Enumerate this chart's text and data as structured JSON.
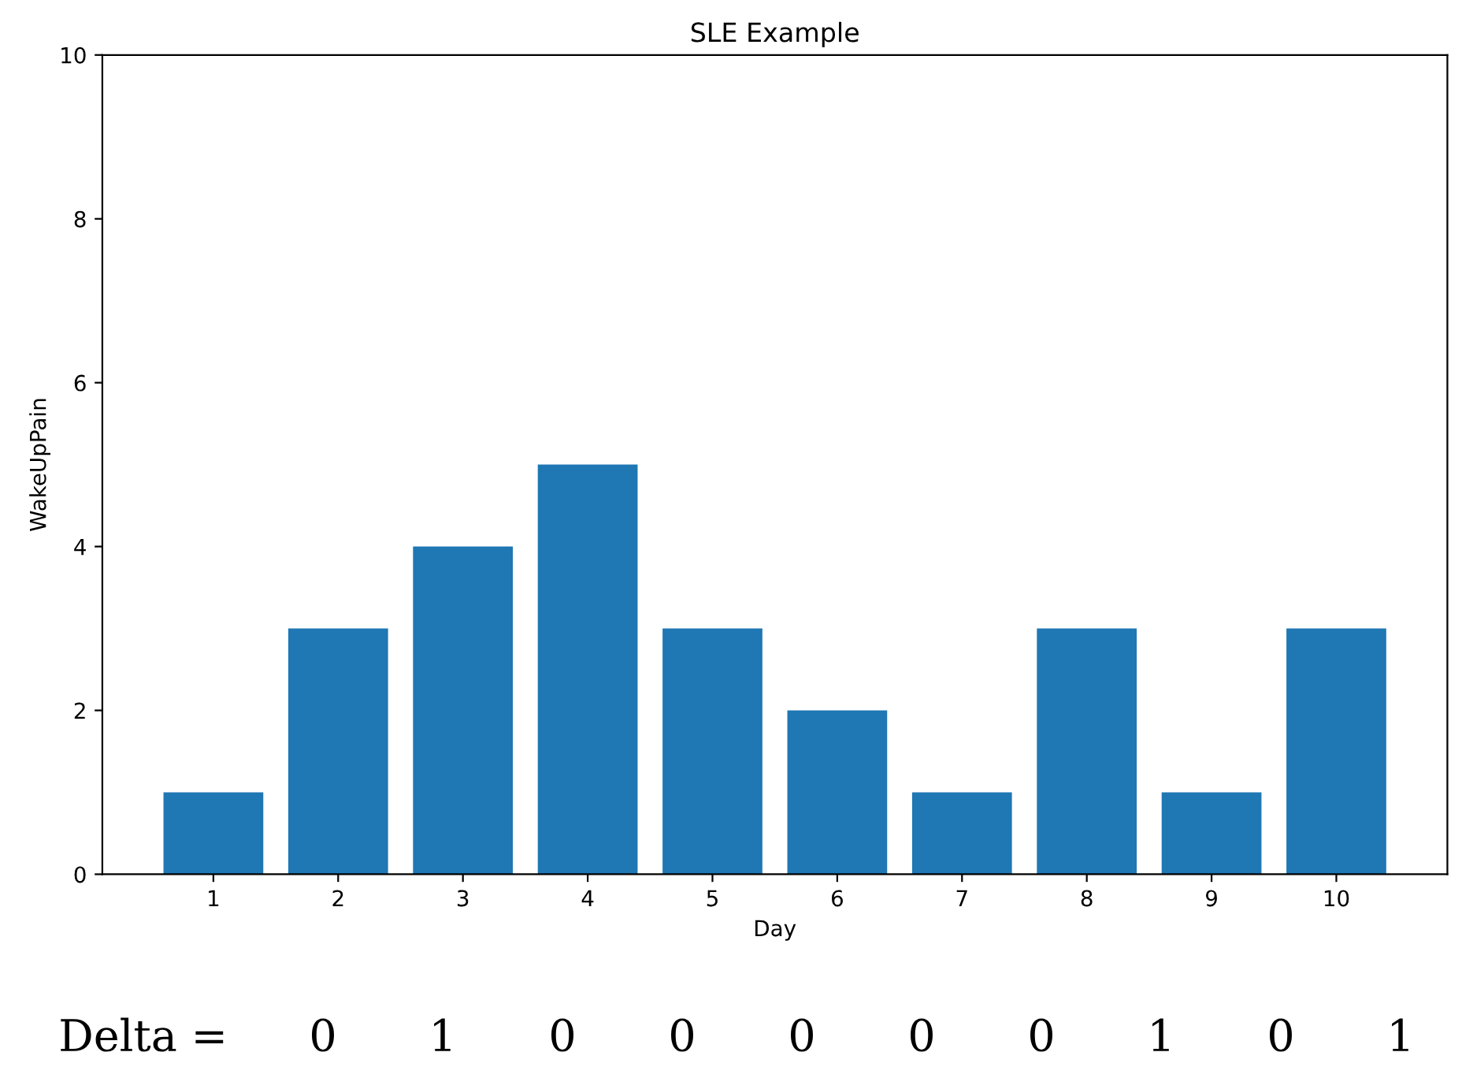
{
  "chart_data": {
    "type": "bar",
    "title": "SLE Example",
    "xlabel": "Day",
    "ylabel": "WakeUpPain",
    "categories": [
      "1",
      "2",
      "3",
      "4",
      "5",
      "6",
      "7",
      "8",
      "9",
      "10"
    ],
    "values": [
      1,
      3,
      4,
      5,
      3,
      2,
      1,
      3,
      1,
      3
    ],
    "color": "#1f77b4",
    "ylim": [
      0,
      10
    ],
    "yticks": [
      0,
      2,
      4,
      6,
      8,
      10
    ],
    "grid": false,
    "annotations": [
      "Delta =",
      "0",
      "1",
      "0",
      "0",
      "0",
      "0",
      "0",
      "1",
      "0",
      "1"
    ]
  }
}
